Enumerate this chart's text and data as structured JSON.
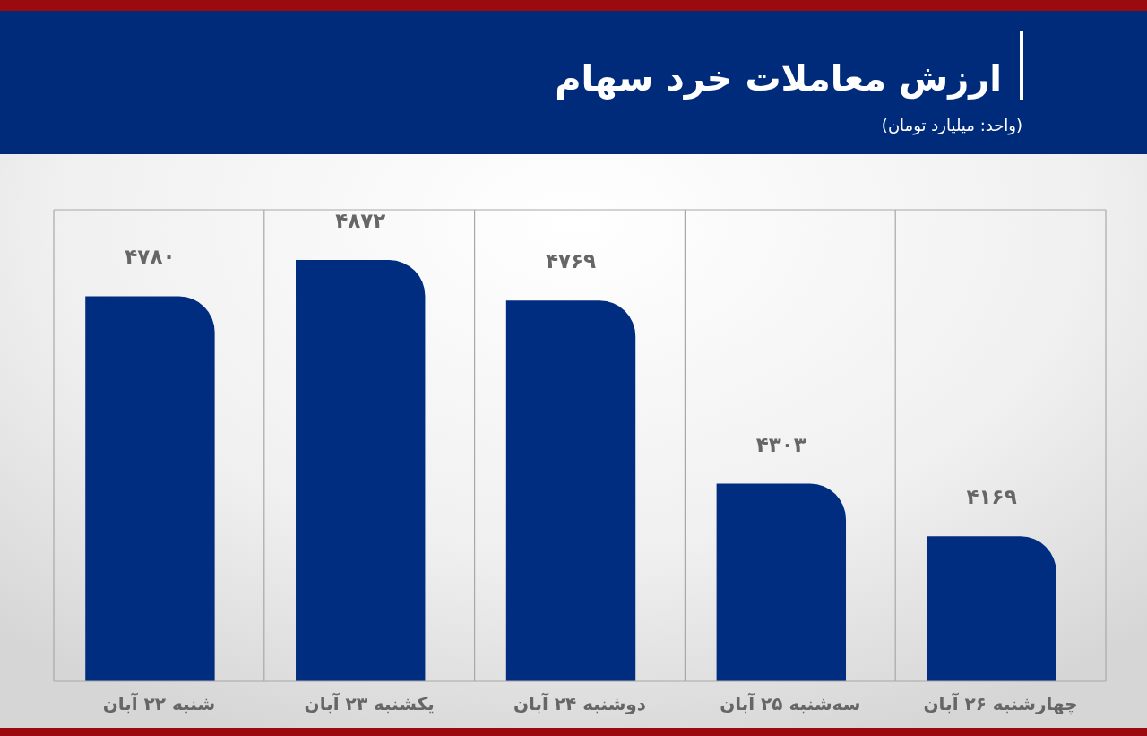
{
  "chart_data": {
    "type": "bar",
    "title": "ارزش معاملات خرد سهام",
    "subtitle": "(واحد: میلیارد تومان)",
    "categories": [
      "شنبه ۲۲ آبان",
      "یکشنبه ۲۳ آبان",
      "دوشنبه ۲۴ آبان",
      "سه‌شنبه ۲۵ آبان",
      "چهارشنبه ۲۶ آبان"
    ],
    "values": [
      4780,
      4872,
      4769,
      4303,
      4169
    ],
    "color": "#002d80",
    "value_labels": [
      "۴۷۸۰",
      "۴۸۷۲",
      "۴۷۶۹",
      "۴۳۰۳",
      "۴۱۶۹"
    ],
    "ylim": [
      3800,
      5000
    ],
    "grid": "x"
  }
}
